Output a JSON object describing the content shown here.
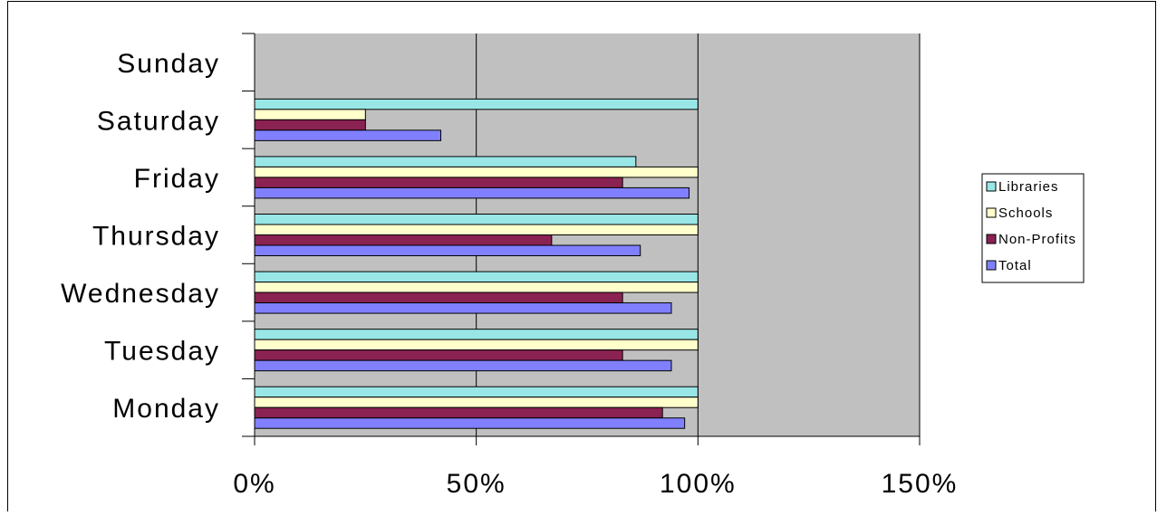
{
  "chart_data": {
    "type": "bar",
    "orientation": "horizontal",
    "categories": [
      "Monday",
      "Tuesday",
      "Wednesday",
      "Thursday",
      "Friday",
      "Saturday",
      "Sunday"
    ],
    "series": [
      {
        "name": "Libraries",
        "color": "#99e6e6",
        "values": [
          100,
          100,
          100,
          100,
          86,
          100,
          null
        ]
      },
      {
        "name": "Schools",
        "color": "#ffffcc",
        "values": [
          100,
          100,
          100,
          100,
          100,
          25,
          null
        ]
      },
      {
        "name": "Non-Profits",
        "color": "#8a2252",
        "values": [
          92,
          83,
          83,
          67,
          83,
          25,
          null
        ]
      },
      {
        "name": "Total",
        "color": "#8080ff",
        "values": [
          97,
          94,
          94,
          87,
          98,
          42,
          null
        ]
      }
    ],
    "x_ticks": [
      "0%",
      "50%",
      "100%",
      "150%"
    ],
    "xlim": [
      0,
      150
    ],
    "x_unit": "%",
    "grid": true,
    "plot_background": "#c0c0c0",
    "legend_position": "right"
  }
}
